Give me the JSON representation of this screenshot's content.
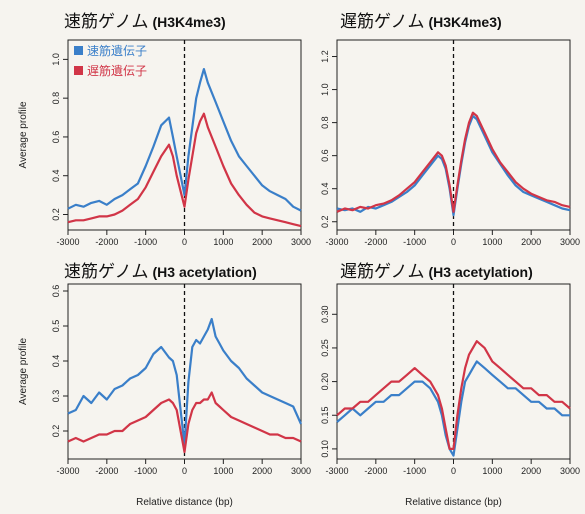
{
  "colors": {
    "fast": "#3a7fc9",
    "slow": "#d13547",
    "axis": "#222222"
  },
  "chart_data": [
    {
      "type": "line",
      "title_jp": "速筋ゲノム",
      "title_en": "(H3K4me3)",
      "xlabel": "",
      "ylabel": "Average profile",
      "xlim": [
        -3000,
        3000
      ],
      "ylim": [
        0.12,
        1.1
      ],
      "xticks": [
        "-3000",
        "-2000",
        "-1000",
        "0",
        "1000",
        "2000",
        "3000"
      ],
      "yticks": [
        "0.2",
        "0.4",
        "0.6",
        "0.8",
        "1.0"
      ],
      "legend": {
        "position": "top-left",
        "entries": [
          "速筋遺伝子",
          "遅筋遺伝子"
        ]
      },
      "series": [
        {
          "name": "速筋遺伝子",
          "color": "#3a7fc9",
          "x": [
            -3000,
            -2800,
            -2600,
            -2400,
            -2200,
            -2000,
            -1800,
            -1600,
            -1400,
            -1200,
            -1000,
            -800,
            -600,
            -400,
            -300,
            -200,
            -100,
            0,
            100,
            200,
            300,
            400,
            500,
            600,
            800,
            1000,
            1200,
            1400,
            1600,
            1800,
            2000,
            2200,
            2400,
            2600,
            2800,
            3000
          ],
          "y": [
            0.23,
            0.25,
            0.24,
            0.26,
            0.27,
            0.25,
            0.28,
            0.3,
            0.33,
            0.36,
            0.45,
            0.55,
            0.66,
            0.7,
            0.6,
            0.5,
            0.4,
            0.3,
            0.5,
            0.65,
            0.8,
            0.88,
            0.95,
            0.88,
            0.78,
            0.68,
            0.58,
            0.5,
            0.45,
            0.4,
            0.35,
            0.32,
            0.3,
            0.28,
            0.24,
            0.22
          ]
        },
        {
          "name": "遅筋遺伝子",
          "color": "#d13547",
          "x": [
            -3000,
            -2800,
            -2600,
            -2400,
            -2200,
            -2000,
            -1800,
            -1600,
            -1400,
            -1200,
            -1000,
            -800,
            -600,
            -400,
            -300,
            -200,
            -100,
            0,
            100,
            200,
            300,
            400,
            500,
            600,
            800,
            1000,
            1200,
            1400,
            1600,
            1800,
            2000,
            2200,
            2400,
            2600,
            2800,
            3000
          ],
          "y": [
            0.16,
            0.17,
            0.17,
            0.18,
            0.19,
            0.19,
            0.2,
            0.22,
            0.25,
            0.28,
            0.34,
            0.42,
            0.5,
            0.56,
            0.5,
            0.4,
            0.32,
            0.24,
            0.38,
            0.5,
            0.62,
            0.68,
            0.72,
            0.65,
            0.55,
            0.45,
            0.36,
            0.3,
            0.25,
            0.21,
            0.19,
            0.18,
            0.17,
            0.16,
            0.15,
            0.14
          ]
        }
      ]
    },
    {
      "type": "line",
      "title_jp": "遅筋ゲノム",
      "title_en": "(H3K4me3)",
      "xlabel": "",
      "ylabel": "",
      "xlim": [
        -3000,
        3000
      ],
      "ylim": [
        0.15,
        1.3
      ],
      "xticks": [
        "-3000",
        "-2000",
        "-1000",
        "0",
        "1000",
        "2000",
        "3000"
      ],
      "yticks": [
        "0.2",
        "0.4",
        "0.6",
        "0.8",
        "1.0",
        "1.2"
      ],
      "series": [
        {
          "name": "",
          "color": "#3a7fc9",
          "x": [
            -3000,
            -2800,
            -2600,
            -2400,
            -2200,
            -2000,
            -1800,
            -1600,
            -1400,
            -1200,
            -1000,
            -800,
            -600,
            -400,
            -300,
            -200,
            -100,
            0,
            100,
            200,
            300,
            400,
            500,
            600,
            800,
            1000,
            1200,
            1400,
            1600,
            1800,
            2000,
            2200,
            2400,
            2600,
            2800,
            3000
          ],
          "y": [
            0.28,
            0.27,
            0.28,
            0.26,
            0.29,
            0.28,
            0.3,
            0.32,
            0.35,
            0.38,
            0.42,
            0.48,
            0.54,
            0.6,
            0.58,
            0.52,
            0.4,
            0.24,
            0.4,
            0.55,
            0.68,
            0.78,
            0.84,
            0.82,
            0.72,
            0.62,
            0.55,
            0.48,
            0.42,
            0.38,
            0.36,
            0.34,
            0.32,
            0.3,
            0.28,
            0.27
          ]
        },
        {
          "name": "",
          "color": "#d13547",
          "x": [
            -3000,
            -2800,
            -2600,
            -2400,
            -2200,
            -2000,
            -1800,
            -1600,
            -1400,
            -1200,
            -1000,
            -800,
            -600,
            -400,
            -300,
            -200,
            -100,
            0,
            100,
            200,
            300,
            400,
            500,
            600,
            800,
            1000,
            1200,
            1400,
            1600,
            1800,
            2000,
            2200,
            2400,
            2600,
            2800,
            3000
          ],
          "y": [
            0.26,
            0.28,
            0.27,
            0.29,
            0.28,
            0.3,
            0.31,
            0.33,
            0.36,
            0.4,
            0.44,
            0.5,
            0.56,
            0.62,
            0.6,
            0.54,
            0.42,
            0.26,
            0.42,
            0.57,
            0.7,
            0.8,
            0.86,
            0.84,
            0.74,
            0.64,
            0.56,
            0.5,
            0.44,
            0.4,
            0.37,
            0.35,
            0.33,
            0.32,
            0.3,
            0.29
          ]
        }
      ]
    },
    {
      "type": "line",
      "title_jp": "速筋ゲノム",
      "title_en": "(H3 acetylation)",
      "xlabel": "Relative distance (bp)",
      "ylabel": "Average profile",
      "xlim": [
        -3000,
        3000
      ],
      "ylim": [
        0.12,
        0.62
      ],
      "xticks": [
        "-3000",
        "-2000",
        "-1000",
        "0",
        "1000",
        "2000",
        "3000"
      ],
      "yticks": [
        "0.2",
        "0.3",
        "0.4",
        "0.5",
        "0.6"
      ],
      "series": [
        {
          "name": "",
          "color": "#3a7fc9",
          "x": [
            -3000,
            -2800,
            -2600,
            -2400,
            -2200,
            -2000,
            -1800,
            -1600,
            -1400,
            -1200,
            -1000,
            -800,
            -600,
            -400,
            -300,
            -200,
            -100,
            0,
            100,
            200,
            300,
            400,
            500,
            600,
            700,
            800,
            900,
            1000,
            1200,
            1400,
            1600,
            1800,
            2000,
            2200,
            2400,
            2600,
            2800,
            3000
          ],
          "y": [
            0.25,
            0.26,
            0.3,
            0.28,
            0.31,
            0.29,
            0.32,
            0.33,
            0.35,
            0.36,
            0.38,
            0.42,
            0.44,
            0.41,
            0.4,
            0.36,
            0.26,
            0.16,
            0.34,
            0.44,
            0.46,
            0.45,
            0.47,
            0.49,
            0.52,
            0.47,
            0.45,
            0.43,
            0.4,
            0.38,
            0.35,
            0.33,
            0.31,
            0.3,
            0.29,
            0.28,
            0.27,
            0.22
          ]
        },
        {
          "name": "",
          "color": "#d13547",
          "x": [
            -3000,
            -2800,
            -2600,
            -2400,
            -2200,
            -2000,
            -1800,
            -1600,
            -1400,
            -1200,
            -1000,
            -800,
            -600,
            -400,
            -300,
            -200,
            -100,
            0,
            100,
            200,
            300,
            400,
            500,
            600,
            700,
            800,
            900,
            1000,
            1200,
            1400,
            1600,
            1800,
            2000,
            2200,
            2400,
            2600,
            2800,
            3000
          ],
          "y": [
            0.17,
            0.18,
            0.17,
            0.18,
            0.19,
            0.19,
            0.2,
            0.2,
            0.22,
            0.23,
            0.24,
            0.26,
            0.28,
            0.29,
            0.28,
            0.26,
            0.2,
            0.14,
            0.22,
            0.26,
            0.28,
            0.28,
            0.29,
            0.29,
            0.31,
            0.28,
            0.27,
            0.26,
            0.24,
            0.23,
            0.22,
            0.21,
            0.2,
            0.19,
            0.19,
            0.18,
            0.18,
            0.17
          ]
        }
      ]
    },
    {
      "type": "line",
      "title_jp": "遅筋ゲノム",
      "title_en": "(H3 acetylation)",
      "xlabel": "Relative distance (bp)",
      "ylabel": "",
      "xlim": [
        -3000,
        3000
      ],
      "ylim": [
        0.085,
        0.345
      ],
      "xticks": [
        "-3000",
        "-2000",
        "-1000",
        "0",
        "1000",
        "2000",
        "3000"
      ],
      "yticks": [
        "0.10",
        "0.15",
        "0.20",
        "0.25",
        "0.30"
      ],
      "series": [
        {
          "name": "",
          "color": "#3a7fc9",
          "x": [
            -3000,
            -2800,
            -2600,
            -2400,
            -2200,
            -2000,
            -1800,
            -1600,
            -1400,
            -1200,
            -1000,
            -800,
            -600,
            -400,
            -300,
            -200,
            -100,
            0,
            100,
            200,
            300,
            400,
            500,
            600,
            800,
            1000,
            1200,
            1400,
            1600,
            1800,
            2000,
            2200,
            2400,
            2600,
            2800,
            3000
          ],
          "y": [
            0.14,
            0.15,
            0.16,
            0.15,
            0.16,
            0.17,
            0.17,
            0.18,
            0.18,
            0.19,
            0.2,
            0.2,
            0.19,
            0.17,
            0.15,
            0.12,
            0.1,
            0.09,
            0.13,
            0.17,
            0.2,
            0.21,
            0.22,
            0.23,
            0.22,
            0.21,
            0.2,
            0.19,
            0.19,
            0.18,
            0.17,
            0.17,
            0.16,
            0.16,
            0.15,
            0.15
          ]
        },
        {
          "name": "",
          "color": "#d13547",
          "x": [
            -3000,
            -2800,
            -2600,
            -2400,
            -2200,
            -2000,
            -1800,
            -1600,
            -1400,
            -1200,
            -1000,
            -800,
            -600,
            -400,
            -300,
            -200,
            -100,
            0,
            100,
            200,
            300,
            400,
            500,
            600,
            800,
            1000,
            1200,
            1400,
            1600,
            1800,
            2000,
            2200,
            2400,
            2600,
            2800,
            3000
          ],
          "y": [
            0.15,
            0.16,
            0.16,
            0.17,
            0.17,
            0.18,
            0.19,
            0.2,
            0.2,
            0.21,
            0.22,
            0.21,
            0.2,
            0.18,
            0.16,
            0.13,
            0.1,
            0.1,
            0.15,
            0.19,
            0.22,
            0.24,
            0.25,
            0.26,
            0.25,
            0.23,
            0.22,
            0.21,
            0.2,
            0.19,
            0.19,
            0.18,
            0.18,
            0.17,
            0.17,
            0.16
          ]
        }
      ]
    }
  ]
}
